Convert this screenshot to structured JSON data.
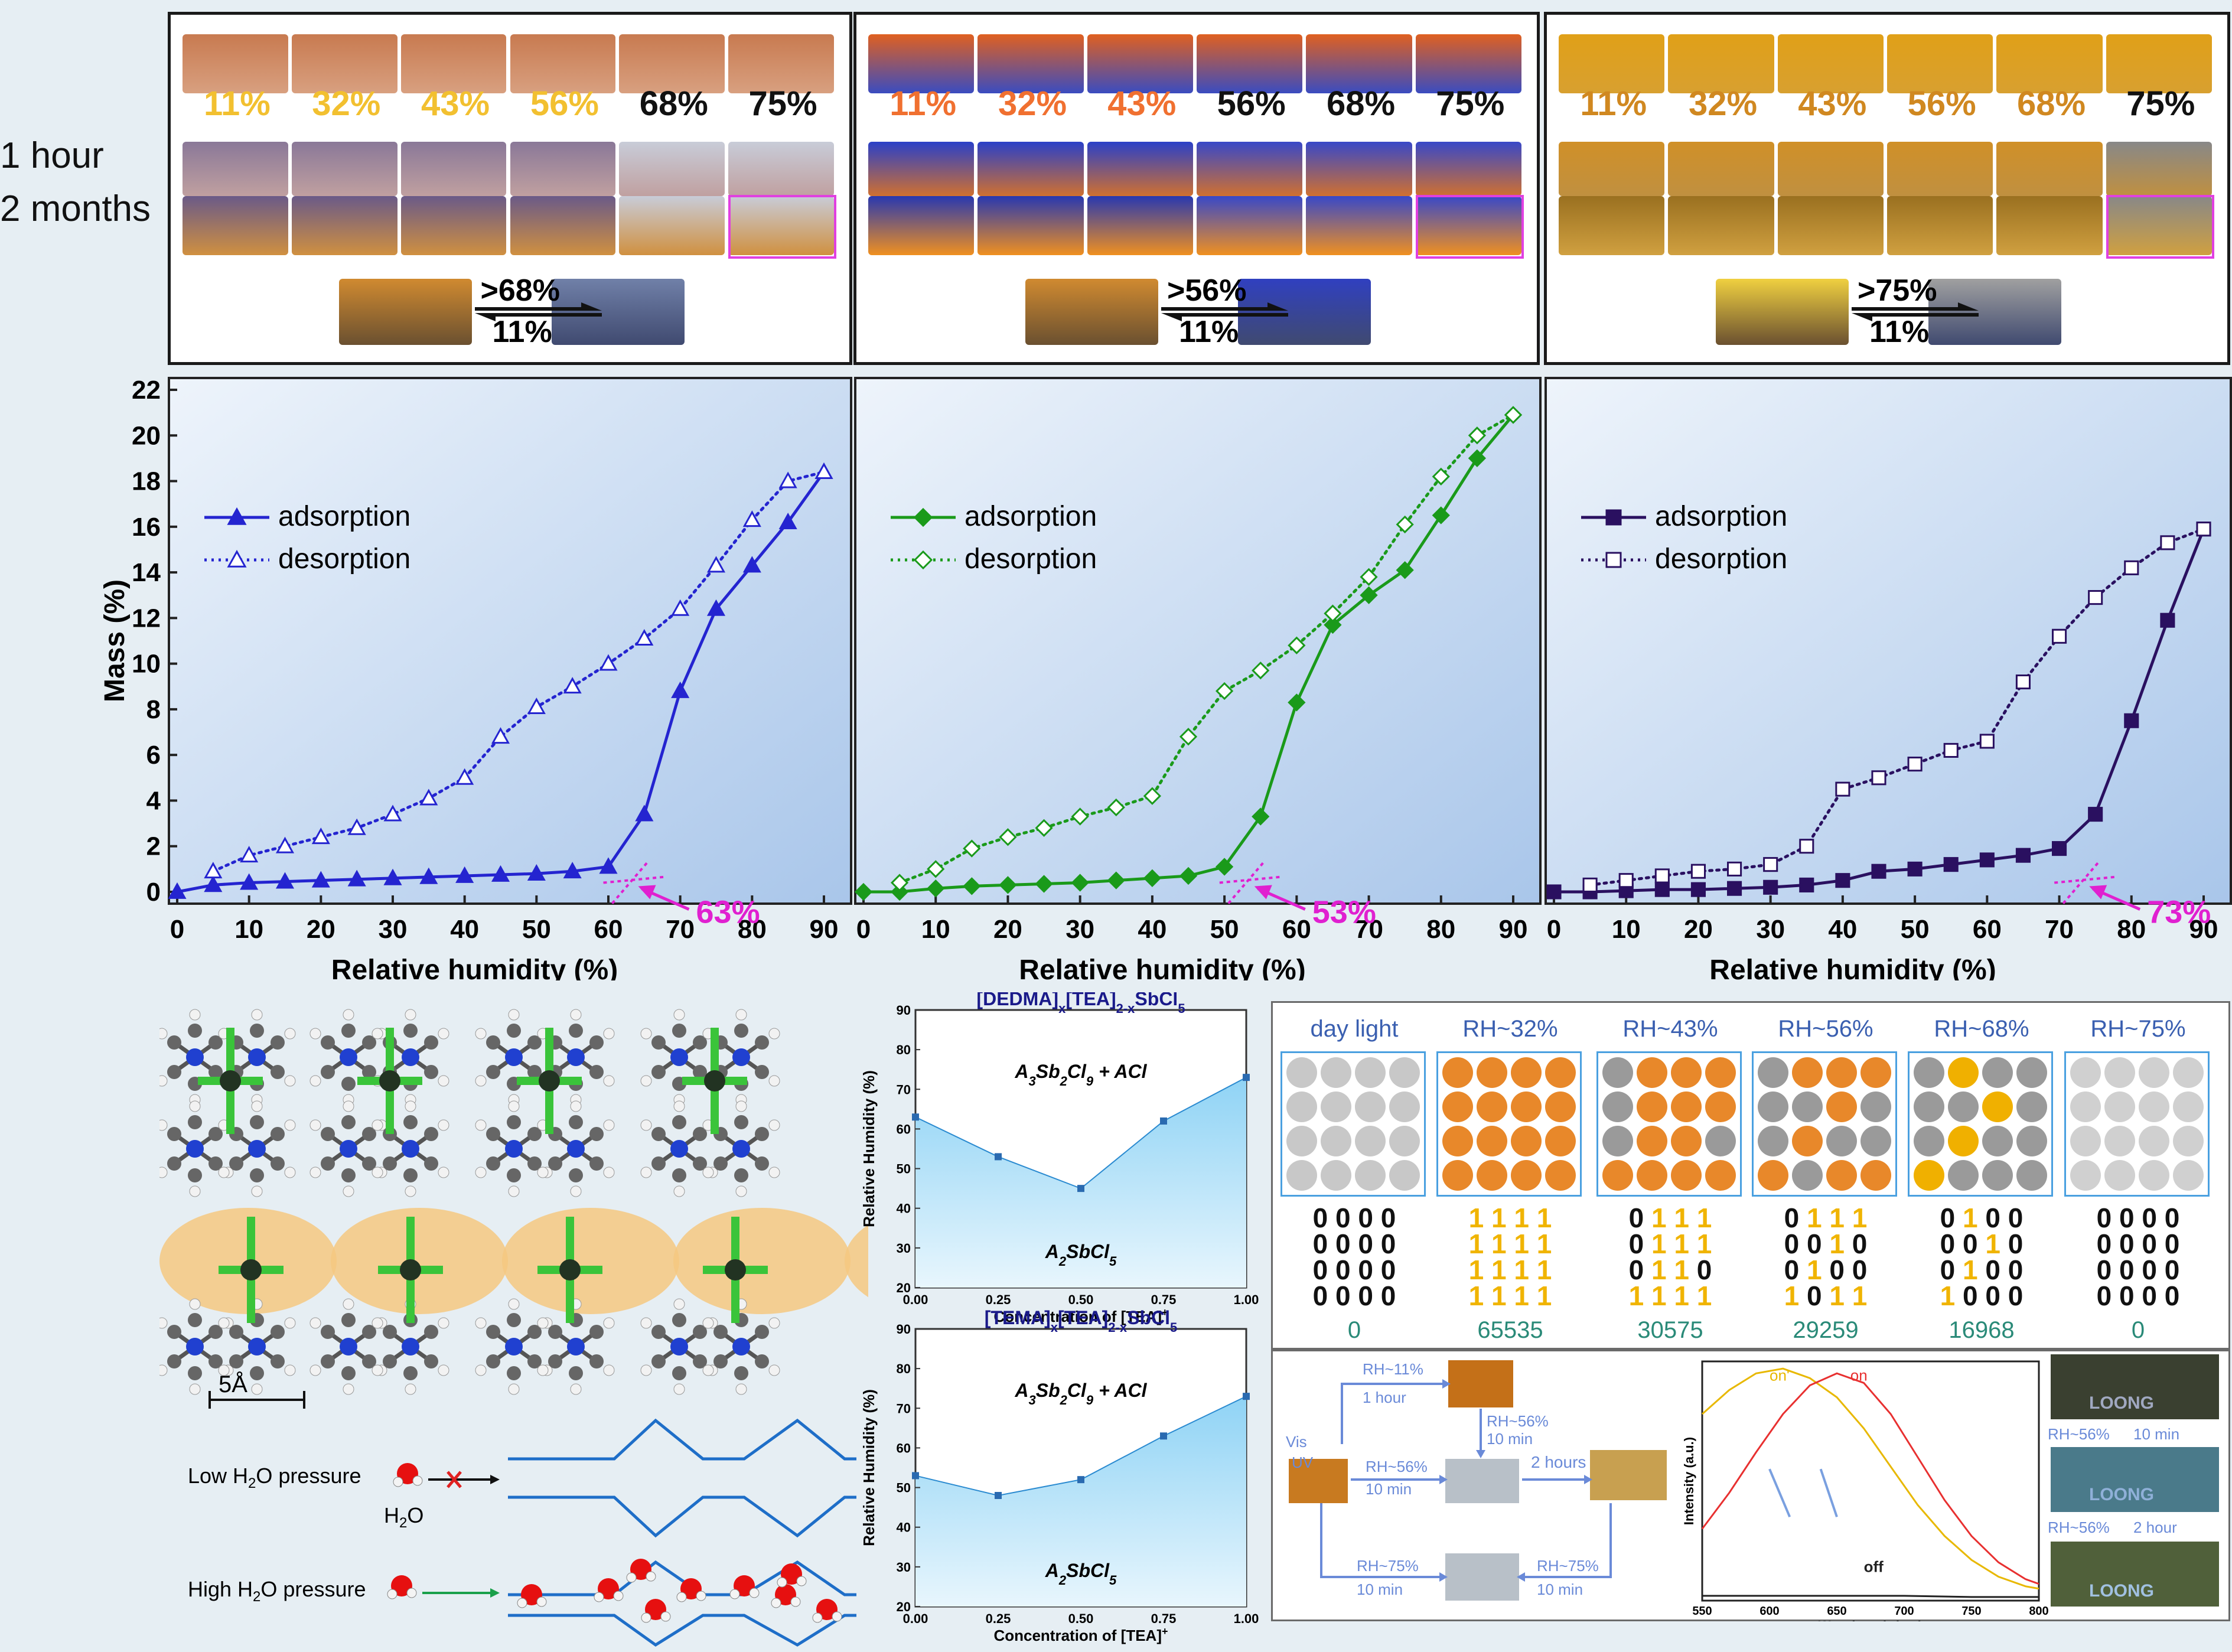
{
  "side_labels": {
    "row1": "1 hour",
    "row2": "2 months"
  },
  "top_panels": [
    {
      "pcts": [
        "11%",
        "32%",
        "43%",
        "56%",
        "68%",
        "75%"
      ],
      "pct_colors": [
        "#f2c030",
        "#f2c030",
        "#f2c030",
        "#f2c030",
        "#111111",
        "#111111"
      ],
      "forward": ">68%",
      "back": "11%"
    },
    {
      "pcts": [
        "11%",
        "32%",
        "43%",
        "56%",
        "68%",
        "75%"
      ],
      "pct_colors": [
        "#f07030",
        "#f07030",
        "#f07030",
        "#111111",
        "#111111",
        "#111111"
      ],
      "forward": ">56%",
      "back": "11%"
    },
    {
      "pcts": [
        "11%",
        "32%",
        "43%",
        "56%",
        "68%",
        "75%"
      ],
      "pct_colors": [
        "#d08820",
        "#d08820",
        "#d08820",
        "#d08820",
        "#d08820",
        "#111111"
      ],
      "forward": ">75%",
      "back": "11%"
    }
  ],
  "chart_data": [
    {
      "type": "line",
      "xlabel": "Relative humidity (%)",
      "ylabel": "Mass (%)",
      "xlim": [
        0,
        90
      ],
      "ylim": [
        0,
        22
      ],
      "x_ticks": [
        0,
        10,
        20,
        30,
        40,
        50,
        60,
        70,
        80,
        90
      ],
      "y_ticks": [
        0,
        2,
        4,
        6,
        8,
        10,
        12,
        14,
        16,
        18,
        20,
        22
      ],
      "annotation": "63%",
      "color": "#2424d0",
      "marker": "triangle",
      "series": [
        {
          "name": "adsorption",
          "x": [
            0,
            5,
            10,
            15,
            20,
            25,
            30,
            35,
            40,
            45,
            50,
            55,
            60,
            65,
            70,
            75,
            80,
            85,
            90
          ],
          "y": [
            0.0,
            0.3,
            0.4,
            0.45,
            0.5,
            0.55,
            0.6,
            0.65,
            0.7,
            0.75,
            0.8,
            0.9,
            1.1,
            3.4,
            8.8,
            12.4,
            14.3,
            16.2,
            18.4
          ]
        },
        {
          "name": "desorption",
          "x": [
            5,
            10,
            15,
            20,
            25,
            30,
            35,
            40,
            45,
            50,
            55,
            60,
            65,
            70,
            75,
            80,
            85,
            90
          ],
          "y": [
            0.9,
            1.6,
            2.0,
            2.4,
            2.8,
            3.4,
            4.1,
            5.0,
            6.8,
            8.1,
            9.0,
            10.0,
            11.1,
            12.4,
            14.3,
            16.3,
            18.0,
            18.4
          ]
        }
      ]
    },
    {
      "type": "line",
      "xlabel": "Relative humidity (%)",
      "ylabel": "",
      "xlim": [
        0,
        90
      ],
      "ylim": [
        0,
        22
      ],
      "x_ticks": [
        0,
        10,
        20,
        30,
        40,
        50,
        60,
        70,
        80,
        90
      ],
      "y_ticks": [],
      "annotation": "53%",
      "color": "#1a9a1a",
      "marker": "diamond",
      "series": [
        {
          "name": "adsorption",
          "x": [
            0,
            5,
            10,
            15,
            20,
            25,
            30,
            35,
            40,
            45,
            50,
            55,
            60,
            65,
            70,
            75,
            80,
            85,
            90
          ],
          "y": [
            0.0,
            0.0,
            0.15,
            0.25,
            0.3,
            0.35,
            0.4,
            0.5,
            0.6,
            0.7,
            1.1,
            3.3,
            8.3,
            11.7,
            13.0,
            14.1,
            16.5,
            19.0,
            20.9
          ]
        },
        {
          "name": "desorption",
          "x": [
            5,
            10,
            15,
            20,
            25,
            30,
            35,
            40,
            45,
            50,
            55,
            60,
            65,
            70,
            75,
            80,
            85,
            90
          ],
          "y": [
            0.4,
            1.0,
            1.9,
            2.4,
            2.8,
            3.3,
            3.7,
            4.2,
            6.8,
            8.8,
            9.7,
            10.8,
            12.2,
            13.8,
            16.1,
            18.2,
            20.0,
            20.9
          ]
        }
      ]
    },
    {
      "type": "line",
      "xlabel": "Relative humidity (%)",
      "ylabel": "",
      "xlim": [
        0,
        90
      ],
      "ylim": [
        0,
        22
      ],
      "x_ticks": [
        0,
        10,
        20,
        30,
        40,
        50,
        60,
        70,
        80,
        90
      ],
      "y_ticks": [],
      "annotation": "73%",
      "color": "#2a1060",
      "marker": "square",
      "series": [
        {
          "name": "adsorption",
          "x": [
            0,
            5,
            10,
            15,
            20,
            25,
            30,
            35,
            40,
            45,
            50,
            55,
            60,
            65,
            70,
            75,
            80,
            85,
            90
          ],
          "y": [
            0.0,
            0.0,
            0.05,
            0.1,
            0.1,
            0.15,
            0.2,
            0.3,
            0.5,
            0.9,
            1.0,
            1.2,
            1.4,
            1.6,
            1.9,
            3.4,
            7.5,
            11.9,
            15.9
          ]
        },
        {
          "name": "desorption",
          "x": [
            5,
            10,
            15,
            20,
            25,
            30,
            35,
            40,
            45,
            50,
            55,
            60,
            65,
            70,
            75,
            80,
            85,
            90
          ],
          "y": [
            0.3,
            0.5,
            0.7,
            0.9,
            1.0,
            1.2,
            2.0,
            4.5,
            5.0,
            5.6,
            6.2,
            6.6,
            9.2,
            11.2,
            12.9,
            14.2,
            15.3,
            15.9
          ]
        }
      ]
    },
    {
      "type": "area",
      "title_main": "[DEDMA]",
      "title_sub1": "x",
      "title_mid": "[TEA]",
      "title_sub2": "2-x",
      "title_end": "SbCl",
      "title_sub3": "5",
      "xlabel": "Concentration of [TEA]",
      "xlabel_sup": "+",
      "ylabel": "Relative Humidity (%)",
      "xlim": [
        0.0,
        1.0
      ],
      "ylim": [
        20,
        90
      ],
      "x_ticks": [
        "0.00",
        "0.25",
        "0.50",
        "0.75",
        "1.00"
      ],
      "y_ticks": [
        20,
        30,
        40,
        50,
        60,
        70,
        80,
        90
      ],
      "x": [
        0.0,
        0.25,
        0.5,
        0.75,
        1.0
      ],
      "y": [
        63,
        53,
        45,
        62,
        73
      ],
      "upper_region": "A3Sb2Cl9 + ACl",
      "lower_region": "A2SbCl5"
    },
    {
      "type": "area",
      "title_main": "[TEMA]",
      "title_sub1": "x",
      "title_mid": "[TEA]",
      "title_sub2": "2-x",
      "title_end": "SbCl",
      "title_sub3": "5",
      "xlabel": "Concentration of [TEA]",
      "xlabel_sup": "+",
      "ylabel": "Relative Humidity (%)",
      "xlim": [
        0.0,
        1.0
      ],
      "ylim": [
        20,
        90
      ],
      "x_ticks": [
        "0.00",
        "0.25",
        "0.50",
        "0.75",
        "1.00"
      ],
      "y_ticks": [
        20,
        30,
        40,
        50,
        60,
        70,
        80,
        90
      ],
      "x": [
        0.0,
        0.25,
        0.5,
        0.75,
        1.0
      ],
      "y": [
        53,
        48,
        52,
        63,
        73
      ],
      "upper_region": "A3Sb2Cl9 + ACl",
      "lower_region": "A2SbCl5"
    },
    {
      "type": "line",
      "xlabel": "Wavelength (nm)",
      "ylabel": "Intensity (a.u.)",
      "xlim": [
        550,
        800
      ],
      "x_ticks": [
        550,
        600,
        650,
        700,
        750,
        800
      ],
      "series": [
        {
          "name": "on'",
          "color": "#e8b800",
          "x": [
            550,
            570,
            590,
            610,
            630,
            650,
            670,
            690,
            710,
            730,
            750,
            770,
            790,
            800
          ],
          "y": [
            0.78,
            0.88,
            0.95,
            0.97,
            0.93,
            0.85,
            0.72,
            0.56,
            0.4,
            0.27,
            0.17,
            0.1,
            0.06,
            0.05
          ]
        },
        {
          "name": "on",
          "color": "#e83030",
          "x": [
            550,
            570,
            590,
            610,
            630,
            650,
            670,
            690,
            710,
            730,
            750,
            770,
            790,
            800
          ],
          "y": [
            0.3,
            0.45,
            0.62,
            0.78,
            0.9,
            0.95,
            0.91,
            0.78,
            0.6,
            0.42,
            0.27,
            0.16,
            0.09,
            0.07
          ]
        },
        {
          "name": "off",
          "color": "#222222",
          "x": [
            550,
            600,
            650,
            700,
            750,
            800
          ],
          "y": [
            0.02,
            0.02,
            0.02,
            0.02,
            0.015,
            0.015
          ]
        }
      ]
    }
  ],
  "legend": {
    "adsorption": "adsorption",
    "desorption": "desorption"
  },
  "structure": {
    "scale": "5Å"
  },
  "pressure": {
    "low": "Low H",
    "low_sub": "2",
    "low_end": "O pressure",
    "high": "High H",
    "high_sub": "2",
    "high_end": "O pressure",
    "h2o": "H",
    "h2o_sub": "2",
    "h2o_end": "O"
  },
  "encoding": {
    "headers": [
      "day light",
      "RH~32%",
      "RH~43%",
      "RH~56%",
      "RH~68%",
      "RH~75%"
    ],
    "values": [
      "0",
      "65535",
      "30575",
      "29259",
      "16968",
      "0"
    ],
    "grids": [
      [
        "0000",
        "0000",
        "0000",
        "0000"
      ],
      [
        "1111",
        "1111",
        "1111",
        "1111"
      ],
      [
        "0111",
        "0111",
        "0110",
        "1111"
      ],
      [
        "0111",
        "0010",
        "0100",
        "1011"
      ],
      [
        "0100",
        "0010",
        "0100",
        "1000"
      ],
      [
        "0000",
        "0000",
        "0000",
        "0000"
      ]
    ],
    "one_color": "#f0b400",
    "zero_color": "#111111"
  },
  "flow": {
    "vis": "Vis",
    "uv": "UV",
    "rh11": "RH~11%",
    "hour1": "1 hour",
    "rh56a": "RH~56%",
    "min10a": "10 min",
    "rh56b": "RH~56%",
    "hours2": "2 hours",
    "rh56c": "RH~56%",
    "min10c": "10 min",
    "rh75a": "RH~75%",
    "min10d": "10 min",
    "rh75b": "RH~75%",
    "min10e": "10 min"
  },
  "loong": {
    "step1": "RH~56%",
    "step1_t": "10 min",
    "step2": "RH~56%",
    "step2_t": "2 hour",
    "word": "LOONG"
  }
}
